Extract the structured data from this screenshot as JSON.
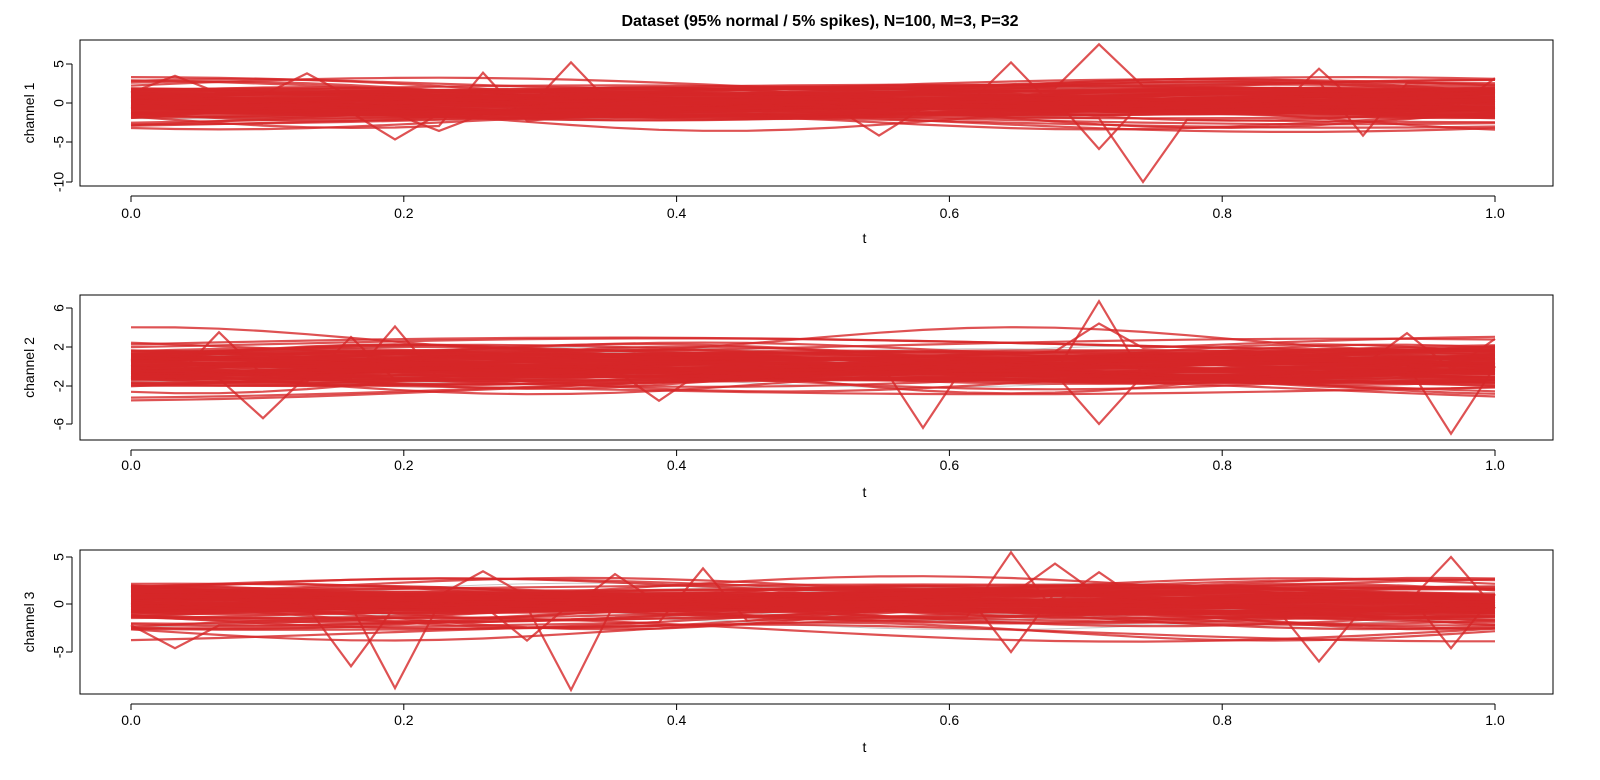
{
  "title": "Dataset (95% normal / 5% spikes), N=100, M=3, P=32",
  "colors": {
    "series": "#d62728",
    "background_series": "#c8c8c8",
    "axes": "#000000"
  },
  "chart_data": [
    {
      "type": "line",
      "panel": "channel 1",
      "xlabel": "t",
      "ylabel": "channel 1",
      "xlim": [
        0,
        1
      ],
      "ylim": [
        -10,
        7.5
      ],
      "xticks": [
        "0.0",
        "0.2",
        "0.4",
        "0.6",
        "0.8",
        "1.0"
      ],
      "yticks": [
        "5",
        "0",
        "-5",
        "-10"
      ],
      "grid": false,
      "n_curves": 100,
      "n_points_per_curve": 32,
      "highlighted_spikes": [
        {
          "t": 0.032,
          "y": 3.5
        },
        {
          "t": 0.129,
          "y": 3.8
        },
        {
          "t": 0.194,
          "y": -4.6
        },
        {
          "t": 0.226,
          "y": -3.5
        },
        {
          "t": 0.258,
          "y": 3.9
        },
        {
          "t": 0.323,
          "y": 5.2
        },
        {
          "t": 0.548,
          "y": -4.1
        },
        {
          "t": 0.645,
          "y": 5.2
        },
        {
          "t": 0.71,
          "y": 7.5
        },
        {
          "t": 0.71,
          "y": -5.8
        },
        {
          "t": 0.742,
          "y": -10.0
        },
        {
          "t": 0.871,
          "y": 4.4
        },
        {
          "t": 0.903,
          "y": -4.1
        },
        {
          "t": 1.0,
          "y": 3.2
        }
      ]
    },
    {
      "type": "line",
      "panel": "channel 2",
      "xlabel": "t",
      "ylabel": "channel 2",
      "xlim": [
        0,
        1
      ],
      "ylim": [
        -7,
        7
      ],
      "xticks": [
        "0.0",
        "0.2",
        "0.4",
        "0.6",
        "0.8",
        "1.0"
      ],
      "yticks": [
        "6",
        "2",
        "-2",
        "-6"
      ],
      "grid": false,
      "n_curves": 100,
      "n_points_per_curve": 32,
      "highlighted_spikes": [
        {
          "t": 0.065,
          "y": 3.5
        },
        {
          "t": 0.097,
          "y": -5.4
        },
        {
          "t": 0.161,
          "y": 3.0
        },
        {
          "t": 0.194,
          "y": 4.1
        },
        {
          "t": 0.387,
          "y": -3.6
        },
        {
          "t": 0.581,
          "y": -6.4
        },
        {
          "t": 0.71,
          "y": 6.7
        },
        {
          "t": 0.71,
          "y": 4.4
        },
        {
          "t": 0.71,
          "y": -6.0
        },
        {
          "t": 0.935,
          "y": 3.4
        },
        {
          "t": 0.968,
          "y": -7.0
        },
        {
          "t": 1.0,
          "y": 2.8
        }
      ]
    },
    {
      "type": "line",
      "panel": "channel 3",
      "xlabel": "t",
      "ylabel": "channel 3",
      "xlim": [
        0,
        1
      ],
      "ylim": [
        -9,
        5.5
      ],
      "xticks": [
        "0.0",
        "0.2",
        "0.4",
        "0.6",
        "0.8",
        "1.0"
      ],
      "yticks": [
        "5",
        "0",
        "-5"
      ],
      "grid": false,
      "n_curves": 100,
      "n_points_per_curve": 32,
      "highlighted_spikes": [
        {
          "t": 0.032,
          "y": -4.6
        },
        {
          "t": 0.161,
          "y": -6.5
        },
        {
          "t": 0.194,
          "y": -8.8
        },
        {
          "t": 0.258,
          "y": 3.5
        },
        {
          "t": 0.29,
          "y": -3.8
        },
        {
          "t": 0.323,
          "y": -9.0
        },
        {
          "t": 0.355,
          "y": 3.2
        },
        {
          "t": 0.419,
          "y": 3.8
        },
        {
          "t": 0.645,
          "y": 5.5
        },
        {
          "t": 0.645,
          "y": -5.0
        },
        {
          "t": 0.677,
          "y": 4.3
        },
        {
          "t": 0.71,
          "y": 3.4
        },
        {
          "t": 0.871,
          "y": -6.0
        },
        {
          "t": 0.968,
          "y": 5.0
        },
        {
          "t": 0.968,
          "y": -4.6
        }
      ]
    }
  ]
}
